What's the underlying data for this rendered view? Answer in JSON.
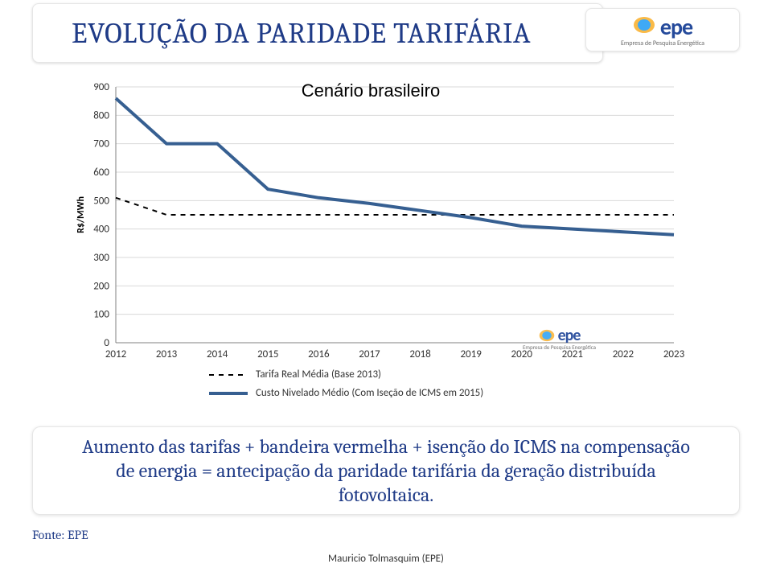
{
  "title": "EVOLUÇÃO DA PARIDADE TARIFÁRIA",
  "logo": {
    "text": "epe",
    "sub": "Empresa de Pesquisa Energética",
    "dot_outer": "#f9b233",
    "dot_inner": "#3fa9f5",
    "text_color": "#254a9b"
  },
  "chart": {
    "type": "line",
    "title": "Cenário brasileiro",
    "ylabel": "R$/MWh",
    "xlim": [
      2012,
      2023
    ],
    "ylim": [
      0,
      900
    ],
    "ytick_step": 100,
    "yticks": [
      0,
      100,
      200,
      300,
      400,
      500,
      600,
      700,
      800,
      900
    ],
    "xticks": [
      2012,
      2013,
      2014,
      2015,
      2016,
      2017,
      2018,
      2019,
      2020,
      2021,
      2022,
      2023
    ],
    "background_color": "#ffffff",
    "grid_color": "#d9d9d9",
    "axis_color": "#808080",
    "tick_fontsize": 13,
    "title_fontsize": 22,
    "series": [
      {
        "name": "Tarifa Real Média (Base 2013)",
        "color": "#000000",
        "line_width": 2,
        "dash": "6,6",
        "marker": "none",
        "points": [
          {
            "x": 2012,
            "y": 510
          },
          {
            "x": 2013,
            "y": 450
          },
          {
            "x": 2014,
            "y": 450
          },
          {
            "x": 2015,
            "y": 450
          },
          {
            "x": 2016,
            "y": 450
          },
          {
            "x": 2017,
            "y": 450
          },
          {
            "x": 2018,
            "y": 450
          },
          {
            "x": 2019,
            "y": 450
          },
          {
            "x": 2020,
            "y": 450
          },
          {
            "x": 2021,
            "y": 450
          },
          {
            "x": 2022,
            "y": 450
          },
          {
            "x": 2023,
            "y": 450
          }
        ]
      },
      {
        "name": "Custo Nivelado Médio (Com Iseção de ICMS em 2015)",
        "color": "#365f91",
        "line_width": 4,
        "dash": "none",
        "marker": "none",
        "points": [
          {
            "x": 2012,
            "y": 860
          },
          {
            "x": 2013,
            "y": 700
          },
          {
            "x": 2014,
            "y": 700
          },
          {
            "x": 2015,
            "y": 540
          },
          {
            "x": 2016,
            "y": 510
          },
          {
            "x": 2017,
            "y": 490
          },
          {
            "x": 2018,
            "y": 465
          },
          {
            "x": 2019,
            "y": 440
          },
          {
            "x": 2020,
            "y": 410
          },
          {
            "x": 2021,
            "y": 400
          },
          {
            "x": 2022,
            "y": 390
          },
          {
            "x": 2023,
            "y": 380
          }
        ]
      }
    ]
  },
  "legend": {
    "items": [
      {
        "label": "Tarifa Real Média (Base 2013)",
        "color": "#000000",
        "dash": "6,6",
        "width": 2
      },
      {
        "label": "Custo Nivelado Médio (Com Iseção de ICMS em 2015)",
        "color": "#365f91",
        "dash": "none",
        "width": 4
      }
    ]
  },
  "note": {
    "line1": "Aumento das tarifas + bandeira vermelha + isenção do ICMS na compensação",
    "line2": "de energia = antecipação da paridade tarifária da geração distribuída",
    "line3": "fotovoltaica."
  },
  "source": "Fonte: EPE",
  "footer": "Mauricio Tolmasquim (EPE)"
}
